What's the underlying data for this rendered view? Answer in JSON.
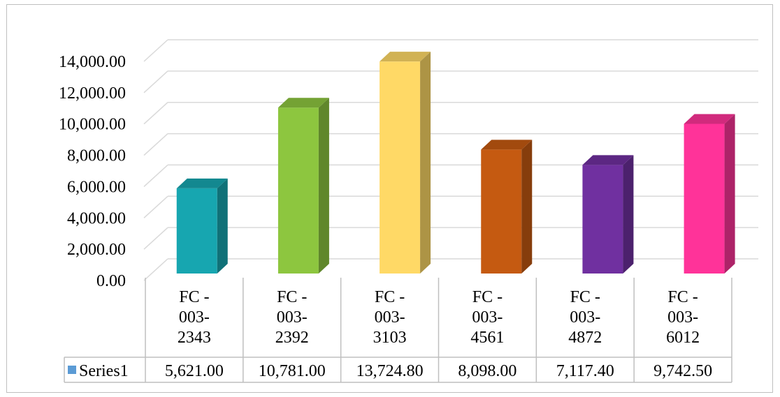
{
  "chart_data": {
    "type": "bar",
    "style": "3d-clustered-column-with-data-table",
    "categories": [
      [
        "FC -",
        "003-",
        "2343"
      ],
      [
        "FC -",
        "003-",
        "2392"
      ],
      [
        "FC -",
        "003-",
        "3103"
      ],
      [
        "FC -",
        "003-",
        "4561"
      ],
      [
        "FC -",
        "003-",
        "4872"
      ],
      [
        "FC -",
        "003-",
        "6012"
      ]
    ],
    "series": [
      {
        "name": "Series1",
        "values": [
          5621.0,
          10781.0,
          13724.8,
          8098.0,
          7117.4,
          9742.5
        ],
        "value_labels": [
          "5,621.00",
          "10,781.00",
          "13,724.80",
          "8,098.00",
          "7,117.40",
          "9,742.50"
        ],
        "legend_color": "#5b9bd5"
      }
    ],
    "bar_colors": [
      "#17a6b0",
      "#8dc63f",
      "#ffd966",
      "#c55a11",
      "#7030a0",
      "#ff3399"
    ],
    "ylim": [
      0,
      14000
    ],
    "y_ticks": [
      "0.00",
      "2,000.00",
      "4,000.00",
      "6,000.00",
      "8,000.00",
      "10,000.00",
      "12,000.00",
      "14,000.00"
    ],
    "grid": true,
    "legend": "in-data-table"
  }
}
